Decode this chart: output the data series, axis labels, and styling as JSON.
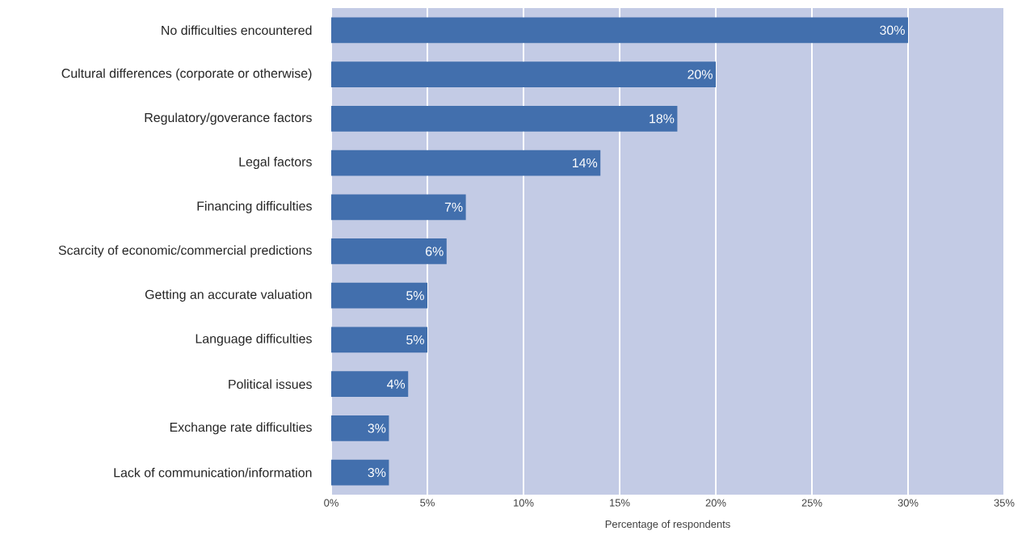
{
  "chart_data": {
    "type": "bar",
    "orientation": "horizontal",
    "xlabel": "Percentage of respondents",
    "categories": [
      "No difficulties encountered",
      "Cultural differences (corporate or otherwise)",
      "Regulatory/goverance factors",
      "Legal factors",
      "Financing difficulties",
      "Scarcity of economic/commercial predictions",
      "Getting an accurate valuation",
      "Language difficulties",
      "Political issues",
      "Exchange rate difficulties",
      "Lack of communication/information"
    ],
    "values": [
      30,
      20,
      18,
      14,
      7,
      6,
      5,
      5,
      4,
      3,
      3
    ],
    "value_labels": [
      "30%",
      "20%",
      "18%",
      "14%",
      "7%",
      "6%",
      "5%",
      "5%",
      "4%",
      "3%",
      "3%"
    ],
    "color": "#426fad",
    "xlim": [
      0,
      35
    ],
    "xticks": [
      {
        "value": 0,
        "label": "0%"
      },
      {
        "value": 5,
        "label": "5%"
      },
      {
        "value": 10,
        "label": "10%"
      },
      {
        "value": 15,
        "label": "15%"
      },
      {
        "value": 20,
        "label": "20%"
      },
      {
        "value": 25,
        "label": "25%"
      },
      {
        "value": 30,
        "label": "30%"
      },
      {
        "value": 35,
        "label": "35%"
      }
    ],
    "grid": "x"
  }
}
